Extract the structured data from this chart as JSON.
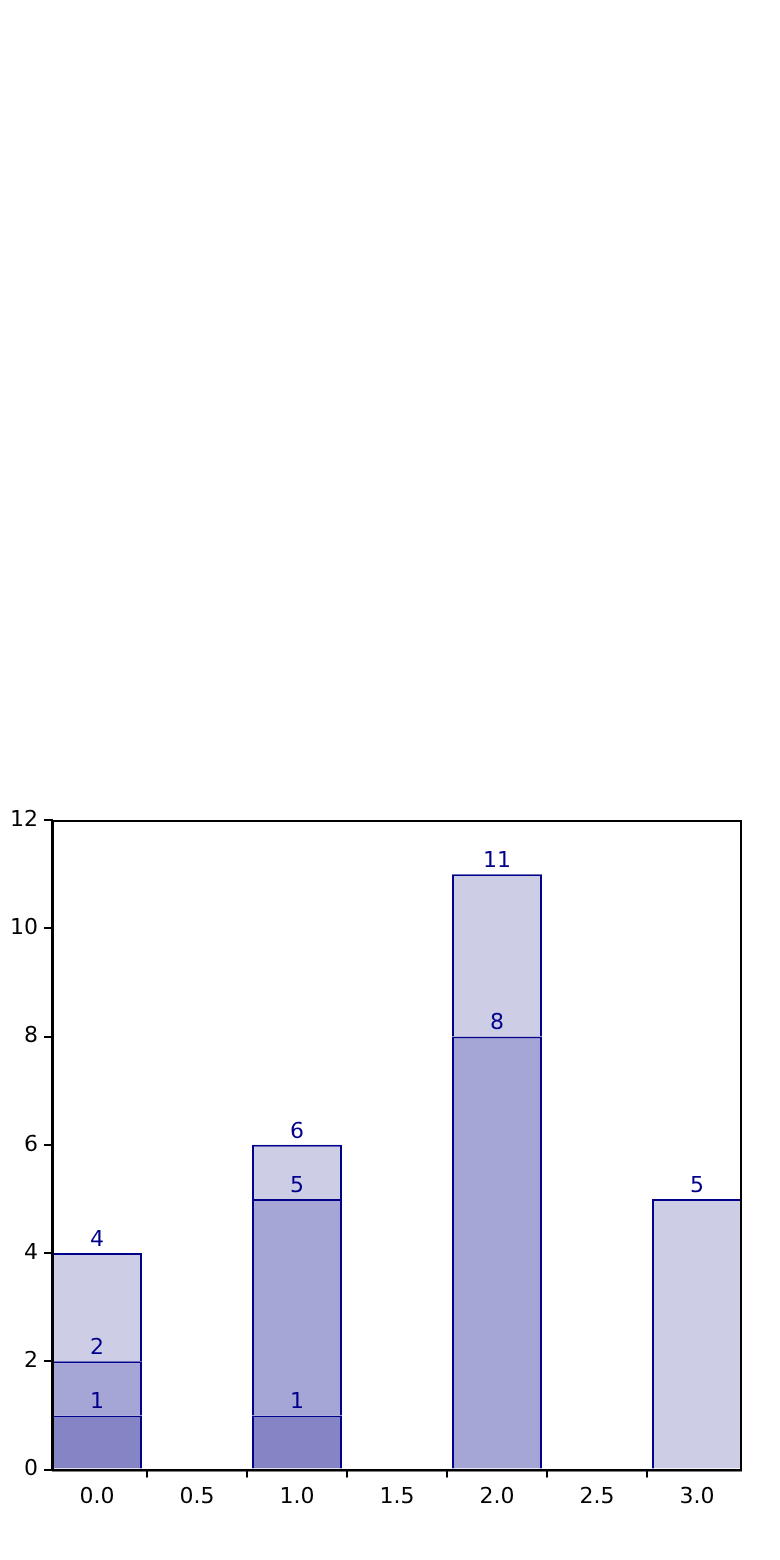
{
  "chart_data": {
    "type": "bar",
    "stacked": true,
    "x": [
      0,
      1,
      2,
      3
    ],
    "series": [
      {
        "color": "#8585c6",
        "values": [
          1,
          1,
          null,
          null
        ]
      },
      {
        "color": "#a5a5d6",
        "values": [
          1,
          4,
          8,
          null
        ]
      },
      {
        "color": "#cdcde6",
        "values": [
          2,
          1,
          3,
          5
        ]
      }
    ],
    "annotations": [
      {
        "text": "1",
        "x": 0,
        "y": 1
      },
      {
        "text": "1",
        "x": 1,
        "y": 1
      },
      {
        "text": "2",
        "x": 0,
        "y": 2
      },
      {
        "text": "5",
        "x": 1,
        "y": 5
      },
      {
        "text": "8",
        "x": 2,
        "y": 8
      },
      {
        "text": "4",
        "x": 0,
        "y": 4
      },
      {
        "text": "6",
        "x": 1,
        "y": 6
      },
      {
        "text": "11",
        "x": 2,
        "y": 11
      },
      {
        "text": "5",
        "x": 3,
        "y": 5
      }
    ],
    "xlim": [
      -0.225,
      3.215
    ],
    "xticks": [
      {
        "value": 0,
        "label": "0.0"
      },
      {
        "value": 0.5,
        "label": "0.5"
      },
      {
        "value": 1,
        "label": "1.0"
      },
      {
        "value": 1.5,
        "label": "1.5"
      },
      {
        "value": 2,
        "label": "2.0"
      },
      {
        "value": 2.5,
        "label": "2.5"
      },
      {
        "value": 3,
        "label": "3.0"
      }
    ],
    "ylim": [
      0,
      12
    ],
    "yticks": [
      0,
      2,
      4,
      6,
      8,
      10,
      12
    ],
    "grid": false,
    "legend": false
  }
}
